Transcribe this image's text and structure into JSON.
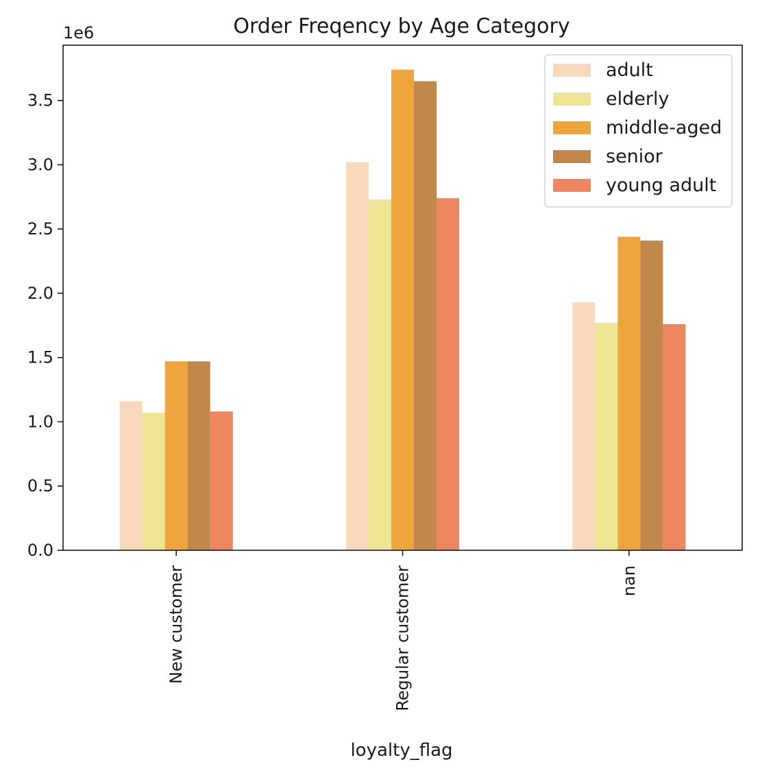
{
  "chart_data": {
    "type": "bar",
    "title": "Order Freqency by Age Category",
    "xlabel": "loyalty_flag",
    "ylabel": "",
    "y_offset_label": "1e6",
    "categories": [
      "New customer",
      "Regular customer",
      "nan"
    ],
    "ylim": [
      0,
      3.93
    ],
    "yticks": [
      0.0,
      0.5,
      1.0,
      1.5,
      2.0,
      2.5,
      3.0,
      3.5
    ],
    "ytick_labels": [
      "0.0",
      "0.5",
      "1.0",
      "1.5",
      "2.0",
      "2.5",
      "3.0",
      "3.5"
    ],
    "legend_position": "upper right",
    "grid": false,
    "series": [
      {
        "name": "adult",
        "color": "#f8d9bc",
        "values": [
          1.16,
          3.02,
          1.93
        ]
      },
      {
        "name": "elderly",
        "color": "#ede594",
        "values": [
          1.07,
          2.73,
          1.77
        ]
      },
      {
        "name": "middle-aged",
        "color": "#eea63c",
        "values": [
          1.47,
          3.74,
          2.44
        ]
      },
      {
        "name": "senior",
        "color": "#c2874b",
        "values": [
          1.47,
          3.65,
          2.41
        ]
      },
      {
        "name": "young adult",
        "color": "#ee8660",
        "values": [
          1.08,
          2.74,
          1.76
        ]
      }
    ]
  }
}
